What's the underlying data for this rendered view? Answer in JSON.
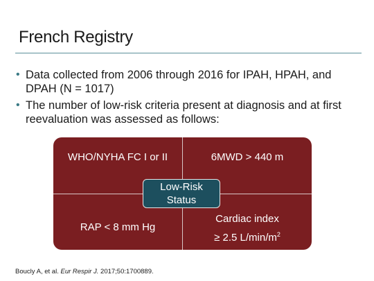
{
  "slide": {
    "title": "French Registry",
    "bullets": [
      "Data collected from 2006 through 2016 for IPAH, HPAH, and DPAH (N = 1017)",
      "The number of low-risk criteria present at diagnosis and at first reevaluation was assessed as follows:"
    ],
    "bullet_marker": "•",
    "diagram": {
      "top_left": "WHO/NYHA FC I or II",
      "top_right": "6MWD > 440 m",
      "bottom_left": "RAP < 8 mm Hg",
      "bottom_right_line1": "Cardiac index",
      "bottom_right_line2": "≥ 2.5 L/min/m",
      "bottom_right_sup": "2",
      "center_line1": "Low-Risk",
      "center_line2": "Status",
      "colors": {
        "quadrant_fill": "#7a1e21",
        "center_fill": "#1d4f5e"
      }
    },
    "citation": {
      "prefix": "Boucly A, et al. ",
      "journal": "Eur Respir J.",
      "suffix": " 2017;50:1700889."
    }
  }
}
